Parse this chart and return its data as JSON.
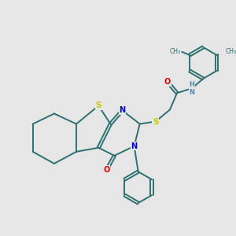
{
  "bg_color": "#e6e6e6",
  "bond_color": "#2d7070",
  "bond_width": 1.4,
  "dbo": 0.06,
  "atom_colors": {
    "S": "#cccc00",
    "N": "#0000cc",
    "O": "#dd0000",
    "H": "#5588aa",
    "C": "#2d7070"
  },
  "afs": 7.0,
  "methyl_fontsize": 5.5
}
